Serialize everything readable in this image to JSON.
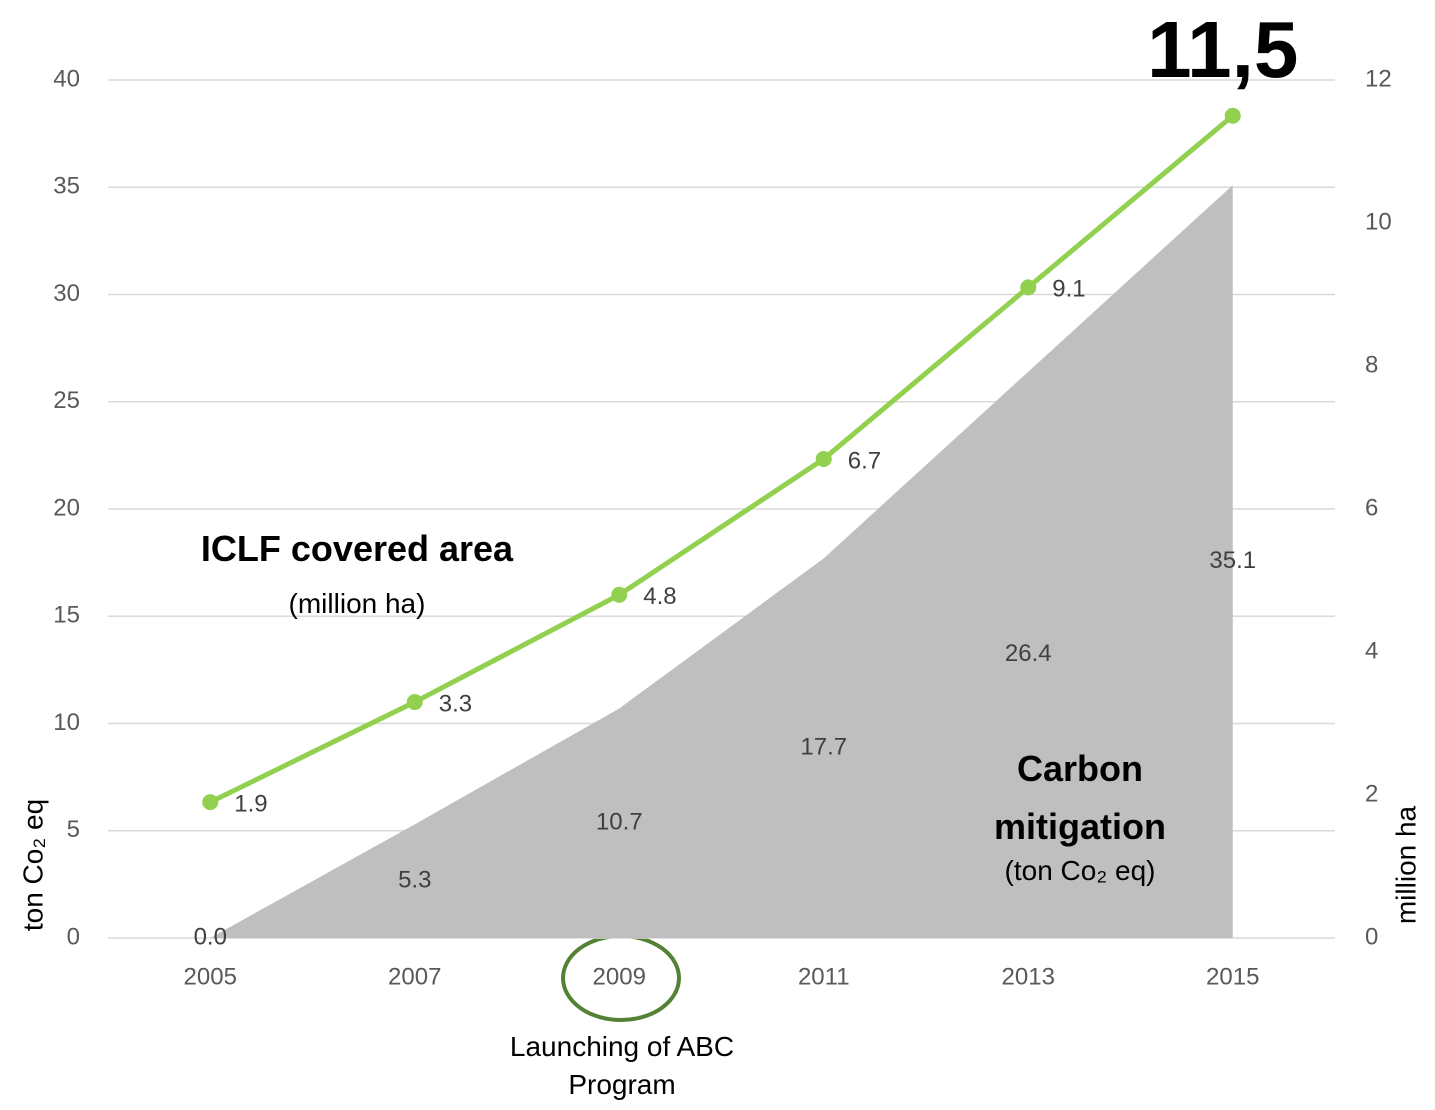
{
  "chart_data": {
    "type": "combo",
    "categories": [
      "2005",
      "2007",
      "2009",
      "2011",
      "2013",
      "2015"
    ],
    "series": [
      {
        "type": "area",
        "color": "#bfbfbf",
        "values": [
          0,
          5.3,
          10.7,
          17.7,
          26.4,
          35.1
        ],
        "value_labels": [
          "0.0",
          "5.3",
          "10.7",
          "17.7",
          "26.4",
          "35.1"
        ]
      },
      {
        "type": "line",
        "axis": "y2",
        "color": "#92d050",
        "values": [
          1.9,
          3.3,
          4.8,
          6.7,
          9.1,
          11.5
        ],
        "value_labels": [
          "1.9",
          "3.3",
          "4.8",
          "6.7",
          "9.1",
          "11,5"
        ]
      }
    ],
    "ylim": [
      0,
      40
    ],
    "yticks": [
      0,
      5,
      10,
      15,
      20,
      25,
      30,
      35,
      40
    ],
    "y2lim": [
      0,
      12
    ],
    "y2ticks": [
      0,
      2,
      4,
      6,
      8,
      10,
      12
    ],
    "y_label": "ton Co₂ eq",
    "y2_label": "million ha",
    "grid": true,
    "annotations": [
      "ICLF covered area",
      "(million ha)",
      "Carbon mitigation",
      "(ton Co₂ eq)",
      "Launching of ABC Program"
    ]
  }
}
